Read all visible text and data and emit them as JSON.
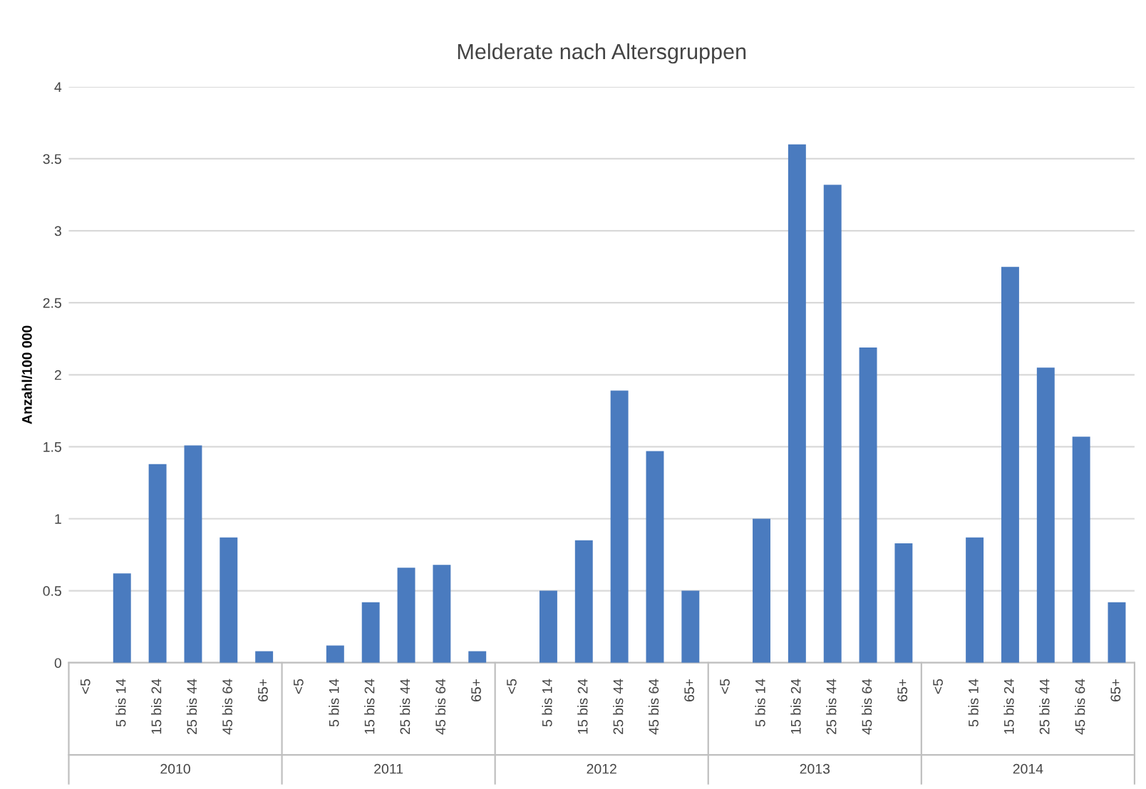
{
  "chart_data": {
    "type": "bar",
    "title": "Melderate nach Altersgruppen",
    "ylabel": "Anzahl/100 000",
    "categories": [
      "<5",
      "5 bis 14",
      "15 bis 24",
      "25 bis 44",
      "45 bis 64",
      "65+",
      "<5",
      "5 bis 14",
      "15 bis 24",
      "25 bis 44",
      "45 bis 64",
      "65+",
      "<5",
      "5 bis 14",
      "15 bis 24",
      "25 bis 44",
      "45 bis 64",
      "65+",
      "<5",
      "5 bis 14",
      "15 bis 24",
      "25 bis 44",
      "45 bis 64",
      "65+",
      "<5",
      "5 bis 14",
      "15 bis 24",
      "25 bis 44",
      "45 bis 64",
      "65+"
    ],
    "values": [
      0,
      0.62,
      1.38,
      1.51,
      0.87,
      0.08,
      0,
      0.12,
      0.42,
      0.66,
      0.68,
      0.08,
      0,
      0.5,
      0.85,
      1.89,
      1.47,
      0.5,
      0,
      1.0,
      3.6,
      3.32,
      2.19,
      0.83,
      0,
      0.87,
      2.75,
      2.05,
      1.57,
      0.42
    ],
    "color": "#4a7bbf",
    "ylim": [
      0,
      4
    ],
    "yticks": [
      0,
      0.5,
      1,
      1.5,
      2,
      2.5,
      3,
      3.5,
      4
    ],
    "grid": "y",
    "annotations": [
      "2010",
      "2011",
      "2012",
      "2013",
      "2014"
    ]
  }
}
